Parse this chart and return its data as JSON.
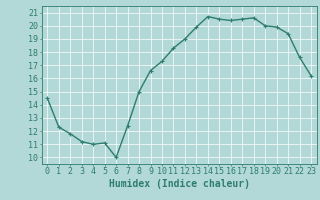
{
  "x": [
    0,
    1,
    2,
    3,
    4,
    5,
    6,
    7,
    8,
    9,
    10,
    11,
    12,
    13,
    14,
    15,
    16,
    17,
    18,
    19,
    20,
    21,
    22,
    23
  ],
  "y": [
    14.5,
    12.3,
    11.8,
    11.2,
    11.0,
    11.1,
    10.0,
    12.4,
    15.0,
    16.6,
    17.3,
    18.3,
    19.0,
    19.9,
    20.7,
    20.5,
    20.4,
    20.5,
    20.6,
    20.0,
    19.9,
    19.4,
    17.6,
    16.2
  ],
  "line_color": "#2e7d6e",
  "marker": "+",
  "bg_color": "#b2d8d8",
  "grid_color": "#ffffff",
  "xlabel": "Humidex (Indice chaleur)",
  "xlim": [
    -0.5,
    23.5
  ],
  "ylim": [
    9.5,
    21.5
  ],
  "yticks": [
    10,
    11,
    12,
    13,
    14,
    15,
    16,
    17,
    18,
    19,
    20,
    21
  ],
  "xticks": [
    0,
    1,
    2,
    3,
    4,
    5,
    6,
    7,
    8,
    9,
    10,
    11,
    12,
    13,
    14,
    15,
    16,
    17,
    18,
    19,
    20,
    21,
    22,
    23
  ],
  "fontsize_label": 7,
  "fontsize_tick": 6,
  "linewidth": 1.0,
  "markersize": 3
}
